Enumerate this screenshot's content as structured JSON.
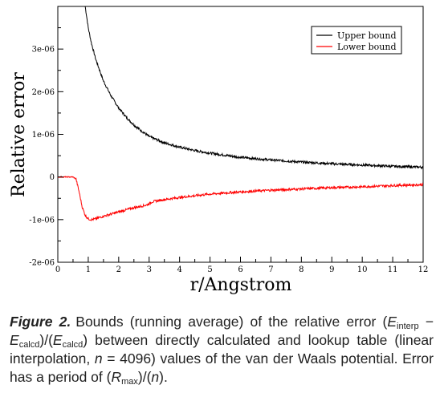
{
  "chart_data": {
    "type": "line",
    "title": "",
    "xlabel": "r/Angstrom",
    "ylabel": "Relative error",
    "xlim": [
      0,
      12
    ],
    "ylim": [
      -2e-06,
      4e-06
    ],
    "x_ticks": [
      0,
      1,
      2,
      3,
      4,
      5,
      6,
      7,
      8,
      9,
      10,
      11,
      12
    ],
    "y_ticks": [
      -2e-06,
      -1e-06,
      0,
      1e-06,
      2e-06,
      3e-06
    ],
    "y_tick_labels": [
      "-2e-06",
      "-1e-06",
      "0",
      "1e-06",
      "2e-06",
      "3e-06"
    ],
    "grid": false,
    "legend_position": "top-right",
    "series": [
      {
        "name": "Upper bound",
        "color": "#000000",
        "x": [
          0.9,
          1.0,
          1.1,
          1.25,
          1.5,
          1.75,
          2.0,
          2.25,
          2.5,
          2.75,
          3.0,
          3.5,
          4.0,
          4.5,
          5.0,
          5.5,
          6.0,
          7.0,
          8.0,
          9.0,
          10.0,
          11.0,
          12.0
        ],
        "y": [
          4e-06,
          3.5e-06,
          3.15e-06,
          2.75e-06,
          2.25e-06,
          1.9e-06,
          1.62e-06,
          1.4e-06,
          1.22e-06,
          1.08e-06,
          9.5e-07,
          8e-07,
          7e-07,
          6.2e-07,
          5.6e-07,
          5.1e-07,
          4.6e-07,
          4e-07,
          3.5e-07,
          3.1e-07,
          2.8e-07,
          2.5e-07,
          2.3e-07
        ]
      },
      {
        "name": "Lower bound",
        "color": "#ff0000",
        "x": [
          0.0,
          0.5,
          0.6,
          0.7,
          0.8,
          0.9,
          1.0,
          1.1,
          1.2,
          1.5,
          2.0,
          2.5,
          2.9,
          3.0,
          3.1,
          3.5,
          4.0,
          5.0,
          6.0,
          7.0,
          8.0,
          9.0,
          10.0,
          11.0,
          12.0
        ],
        "y": [
          0.0,
          0.0,
          -5e-08,
          -3.5e-07,
          -7e-07,
          -9e-07,
          -9.8e-07,
          -1e-06,
          -9.9e-07,
          -9.2e-07,
          -8.2e-07,
          -7.2e-07,
          -6.6e-07,
          -6.3e-07,
          -5.8e-07,
          -5.3e-07,
          -4.8e-07,
          -4e-07,
          -3.5e-07,
          -3.1e-07,
          -2.8e-07,
          -2.5e-07,
          -2.3e-07,
          -2e-07,
          -1.8e-07
        ]
      }
    ]
  },
  "caption": {
    "label": "Figure 2.",
    "text_1": "Bounds (running average) of the relative error (",
    "e1": "E",
    "sub1": "interp",
    "minus": " − ",
    "e2": "E",
    "sub2": "calcd",
    "mid": ")/(",
    "e3": "E",
    "sub3": "calcd",
    "text_2": ") between directly calculated and lookup table (linear interpolation, ",
    "n_var": "n",
    "text_3": " = 4096) values of the van der Waals potential. Error has a period of (",
    "rmax_var": "R",
    "rmax_sub": "max",
    "text_4": ")/(",
    "n_var2": "n",
    "text_5": ")."
  }
}
